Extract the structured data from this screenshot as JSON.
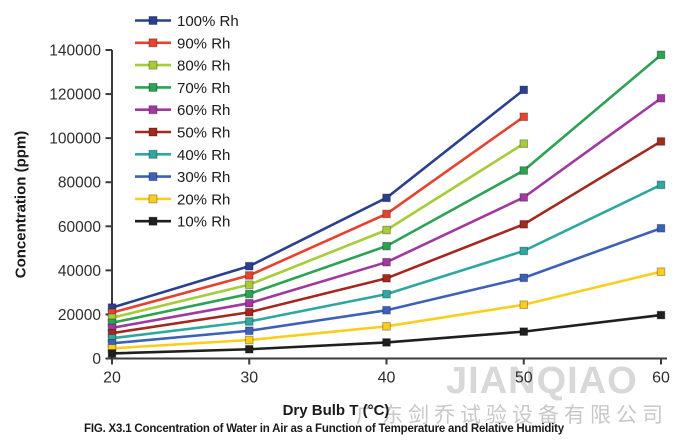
{
  "watermark": {
    "brand": "JIANQIAO",
    "company": "广东剑乔试验设备有限公司"
  },
  "caption": "FIG. X3.1 Concentration of Water in Air as a Function of Temperature and Relative Humidity",
  "chart_data": {
    "type": "line",
    "title": "",
    "xlabel": "Dry Bulb T (°C)",
    "ylabel": "Concentration (ppm)",
    "xlim": [
      20,
      60
    ],
    "ylim": [
      0,
      140000
    ],
    "x_ticks": [
      20,
      30,
      40,
      50,
      60
    ],
    "y_ticks": [
      0,
      20000,
      40000,
      60000,
      80000,
      100000,
      120000,
      140000
    ],
    "grid": false,
    "legend_position": "top-left-inside",
    "marker": "square",
    "series": [
      {
        "name": "100% Rh",
        "color": "#2B3F8F",
        "x": [
          20,
          30,
          40,
          50
        ],
        "values": [
          23100,
          41900,
          72900,
          121900
        ]
      },
      {
        "name": "90% Rh",
        "color": "#E5432E",
        "x": [
          20,
          30,
          40,
          50
        ],
        "values": [
          20800,
          37700,
          65600,
          109700
        ]
      },
      {
        "name": "80% Rh",
        "color": "#A8CB3A",
        "x": [
          20,
          30,
          40,
          50
        ],
        "values": [
          18500,
          33500,
          58300,
          97500
        ]
      },
      {
        "name": "70% Rh",
        "color": "#2CA253",
        "x": [
          20,
          30,
          40,
          50,
          60
        ],
        "values": [
          16200,
          29300,
          51000,
          85300,
          137800
        ]
      },
      {
        "name": "60% Rh",
        "color": "#A138A0",
        "x": [
          20,
          30,
          40,
          50,
          60
        ],
        "values": [
          13900,
          25100,
          43700,
          73100,
          118100
        ]
      },
      {
        "name": "50% Rh",
        "color": "#A4281E",
        "x": [
          20,
          30,
          40,
          50,
          60
        ],
        "values": [
          11500,
          21000,
          36400,
          60900,
          98500
        ]
      },
      {
        "name": "40% Rh",
        "color": "#2EA7A0",
        "x": [
          20,
          30,
          40,
          50,
          60
        ],
        "values": [
          9200,
          16800,
          29200,
          48800,
          78800
        ]
      },
      {
        "name": "30% Rh",
        "color": "#3D61B8",
        "x": [
          20,
          30,
          40,
          50,
          60
        ],
        "values": [
          6900,
          12600,
          21900,
          36600,
          59100
        ]
      },
      {
        "name": "20% Rh",
        "color": "#FBCE1D",
        "x": [
          20,
          30,
          40,
          50,
          60
        ],
        "values": [
          4600,
          8400,
          14600,
          24400,
          39400
        ]
      },
      {
        "name": "10% Rh",
        "color": "#1F1F1F",
        "x": [
          20,
          30,
          40,
          50,
          60
        ],
        "values": [
          2300,
          4200,
          7300,
          12200,
          19700
        ]
      }
    ]
  }
}
